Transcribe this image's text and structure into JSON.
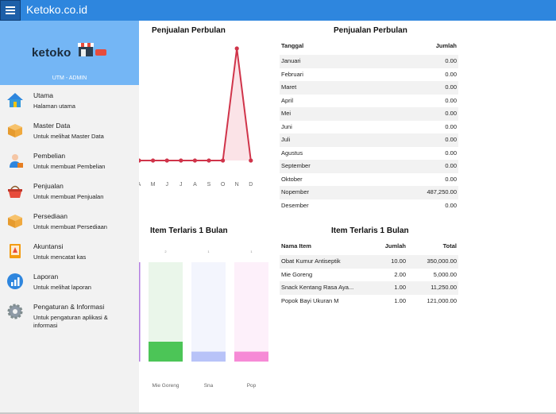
{
  "app": {
    "title": "Ketoko.co.id"
  },
  "sidebar": {
    "logo_text": "ketoko",
    "user_role": "UTM - ADMIN",
    "items": [
      {
        "label": "Utama",
        "desc": "Halaman utama",
        "icon": "home-icon"
      },
      {
        "label": "Master Data",
        "desc": "Untuk melihat Master Data",
        "icon": "box-icon"
      },
      {
        "label": "Pembelian",
        "desc": "Untuk membuat Pembelian",
        "icon": "buyer-icon"
      },
      {
        "label": "Penjualan",
        "desc": "Untuk membuat Penjualan",
        "icon": "basket-icon"
      },
      {
        "label": "Persediaan",
        "desc": "Untuk membuat Persediaan",
        "icon": "box-icon"
      },
      {
        "label": "Akuntansi",
        "desc": "Untuk mencatat kas",
        "icon": "ledger-icon"
      },
      {
        "label": "Laporan",
        "desc": "Untuk melihat laporan",
        "icon": "report-icon"
      },
      {
        "label": "Pengaturan & Informasi",
        "desc": "Untuk pengaturan aplikasi & informasi",
        "icon": "gear-icon"
      }
    ]
  },
  "sales_chart": {
    "title": "Penjualan Perbulan",
    "chart_data": {
      "type": "line",
      "x": [
        "A",
        "M",
        "J",
        "J",
        "A",
        "S",
        "O",
        "N",
        "D"
      ],
      "values": [
        0,
        0,
        0,
        0,
        0,
        0,
        0,
        487250,
        0
      ],
      "color": "#d0344a"
    }
  },
  "sales_table": {
    "title": "Penjualan Perbulan",
    "headers": [
      "Tanggal",
      "Jumlah"
    ],
    "rows": [
      [
        "Januari",
        "0.00"
      ],
      [
        "Februari",
        "0.00"
      ],
      [
        "Maret",
        "0.00"
      ],
      [
        "April",
        "0.00"
      ],
      [
        "Mei",
        "0.00"
      ],
      [
        "Juni",
        "0.00"
      ],
      [
        "Juli",
        "0.00"
      ],
      [
        "Agustus",
        "0.00"
      ],
      [
        "September",
        "0.00"
      ],
      [
        "Oktober",
        "0.00"
      ],
      [
        "Nopember",
        "487,250.00"
      ],
      [
        "Desember",
        "0.00"
      ]
    ]
  },
  "top_chart": {
    "title": "Item Terlaris 1 Bulan",
    "chart_data": {
      "type": "bar",
      "categories": [
        "Mie Goreng",
        "Sna",
        "Pop"
      ],
      "values": [
        2,
        1,
        1
      ],
      "ylim": [
        0,
        10
      ],
      "value_labels": [
        "2",
        "1",
        "1"
      ],
      "colors": [
        "#4cc557",
        "#b8c3f8",
        "#f68ad6"
      ],
      "track_colors": [
        "#eaf6ea",
        "#f3f5fd",
        "#fdf0fa"
      ],
      "edge_color": "#b37ee0"
    }
  },
  "top_table": {
    "title": "Item Terlaris 1 Bulan",
    "headers": [
      "Nama Item",
      "Jumlah",
      "Total"
    ],
    "rows": [
      [
        "Obat Kumur Antiseptik",
        "10.00",
        "350,000.00"
      ],
      [
        "Mie Goreng",
        "2.00",
        "5,000.00"
      ],
      [
        "Snack Kentang Rasa Aya...",
        "1.00",
        "11,250.00"
      ],
      [
        "Popok Bayi Ukuran M",
        "1.00",
        "121,000.00"
      ]
    ]
  }
}
